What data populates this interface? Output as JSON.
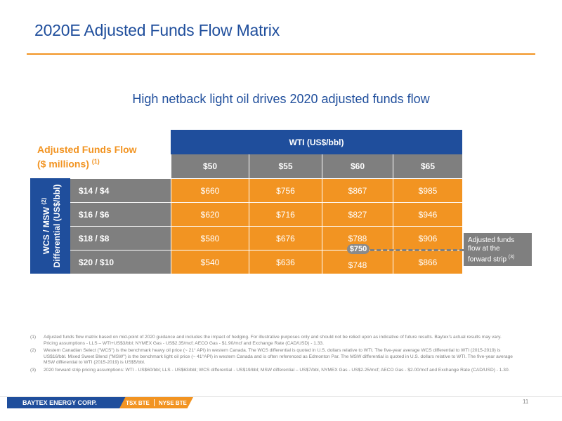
{
  "title": "2020E Adjusted Funds Flow Matrix",
  "subtitle": "High netback light oil drives 2020 adjusted funds flow",
  "matrix": {
    "corner_label_line1": "Adjusted Funds Flow",
    "corner_label_line2": "($ millions)",
    "corner_label_ref": "(1)",
    "column_axis_title": "WTI (US$/bbl)",
    "row_axis_title_line1": "WCS / MSW",
    "row_axis_title_ref": "(2)",
    "row_axis_title_line2": "Differential (US$/bbl)",
    "columns": [
      "$50",
      "$55",
      "$60",
      "$65"
    ],
    "rows": [
      {
        "label": "$14 / $4",
        "values": [
          "$660",
          "$756",
          "$867",
          "$985"
        ]
      },
      {
        "label": "$16 / $6",
        "values": [
          "$620",
          "$716",
          "$827",
          "$946"
        ]
      },
      {
        "label": "$18 / $8",
        "values": [
          "$580",
          "$676",
          "$788",
          "$906"
        ]
      },
      {
        "label": "$20 / $10",
        "values": [
          "$540",
          "$636",
          "$748",
          "$866"
        ]
      }
    ],
    "forward_strip_value": "$750",
    "callout_line1": "Adjusted funds",
    "callout_line2": "flow at the",
    "callout_line3": "forward strip",
    "callout_ref": "(3)"
  },
  "footnotes": [
    {
      "num": "(1)",
      "text": "Adjusted funds flow matrix based on mid-point of 2020 guidance and includes the impact of hedging. For illustrative purposes only and should not be relied upon as indicative of future results. Baytex’s actual results may vary. Pricing assumptions - LLS – WTI+US$3/bbl; NYMEX Gas - US$2.35/mcf; AECO Gas - $1.90/mcf and Exchange Rate (CAD/USD) - 1.33."
    },
    {
      "num": "(2)",
      "text": "Western Canadian Select (\"WCS\") is the benchmark heavy oil price (~ 21° API) in western Canada. The WCS differential is quoted in U.S. dollars relative to WTI. The five-year average WCS differential to WTI (2015-2019) is US$16/bbl. Mixed Sweet Blend (\"MSW\") is the benchmark light oil price (~ 41°API) in western Canada and is often referenced as Edmonton Par. The MSW differential is quoted in U.S. dollars relative to WTI. The five-year average MSW differential to WTI (2015-2019) is US$5/bbl."
    },
    {
      "num": "(3)",
      "text": "2020 forward strip pricing assumptions: WTI - US$60/bbl; LLS - US$63/bbl; WCS differential - US$19/bbl; MSW differential – US$7/bbl, NYMEX Gas - US$2.25/mcf; AECO Gas - $2.00/mcf and Exchange Rate (CAD/USD) - 1.30."
    }
  ],
  "footer": {
    "company": "BAYTEX ENERGY CORP.",
    "ticker_tsx": "TSX BTE",
    "ticker_nyse": "NYSE BTE",
    "page_number": "11"
  },
  "colors": {
    "brand_blue": "#1f4e9c",
    "accent_orange": "#f29422",
    "header_gray": "#7f7f7f"
  }
}
